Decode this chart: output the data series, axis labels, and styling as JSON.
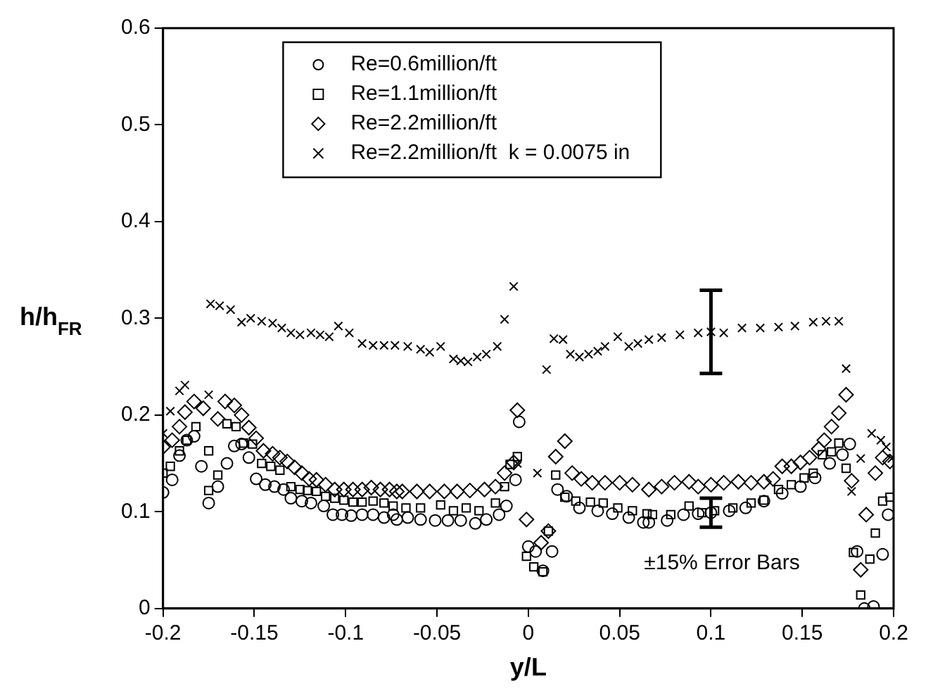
{
  "chart_data": {
    "type": "scatter",
    "xlabel": "y/L",
    "ylabel": "h/h$_{FR}$",
    "xlim": [
      -0.2,
      0.2
    ],
    "xticks": [
      -0.2,
      -0.15,
      -0.1,
      -0.05,
      0,
      0.05,
      0.1,
      0.15,
      0.2
    ],
    "ylim": [
      0,
      0.6
    ],
    "yticks": [
      0,
      0.1,
      0.2,
      0.3,
      0.4,
      0.5,
      0.6
    ],
    "grid": false,
    "legend": "top",
    "annotations": [
      "±15% Error Bars"
    ],
    "series": [
      {
        "name": "Re=0.6million/ft",
        "color": "#000000",
        "marker": "circle",
        "x": [
          0.1,
          -0.2,
          -0.195,
          -0.191,
          -0.187,
          -0.183,
          -0.179,
          -0.175,
          -0.17,
          -0.165,
          -0.161,
          -0.157,
          -0.153,
          -0.149,
          -0.144,
          -0.139,
          -0.134,
          -0.13,
          -0.124,
          -0.119,
          -0.112,
          -0.107,
          -0.102,
          -0.097,
          -0.091,
          -0.085,
          -0.079,
          -0.072,
          -0.066,
          -0.059,
          -0.051,
          -0.044,
          -0.037,
          -0.029,
          -0.023,
          -0.016,
          -0.012,
          -0.007,
          -0.005,
          0.0,
          0.004,
          0.008,
          0.013,
          0.016,
          0.021,
          0.028,
          0.038,
          0.046,
          0.055,
          0.063,
          0.066,
          0.076,
          0.085,
          0.093,
          0.11,
          0.119,
          0.129,
          0.139,
          0.149,
          0.157,
          0.165,
          0.172,
          0.176,
          0.18,
          0.184,
          0.189,
          0.194,
          0.197,
          -0.074
        ],
        "values": [
          0.099,
          0.12,
          0.133,
          0.158,
          0.174,
          0.178,
          0.147,
          0.109,
          0.126,
          0.15,
          0.168,
          0.17,
          0.156,
          0.134,
          0.128,
          0.126,
          0.123,
          0.114,
          0.111,
          0.109,
          0.106,
          0.097,
          0.097,
          0.096,
          0.097,
          0.097,
          0.094,
          0.092,
          0.094,
          0.092,
          0.091,
          0.091,
          0.091,
          0.088,
          0.092,
          0.097,
          0.106,
          0.133,
          0.193,
          0.064,
          0.059,
          0.039,
          0.059,
          0.123,
          0.116,
          0.104,
          0.101,
          0.098,
          0.094,
          0.089,
          0.089,
          0.091,
          0.097,
          0.098,
          0.101,
          0.104,
          0.111,
          0.119,
          0.126,
          0.135,
          0.15,
          0.159,
          0.17,
          0.059,
          0.0,
          0.002,
          0.056,
          0.097,
          0.097
        ],
        "errors": [
          0.015,
          null,
          null,
          null,
          null,
          null,
          null,
          null,
          null,
          null,
          null,
          null,
          null,
          null,
          null,
          null,
          null,
          null,
          null,
          null,
          null,
          null,
          null,
          null,
          null,
          null,
          null,
          null,
          null,
          null,
          null,
          null,
          null,
          null,
          null,
          null,
          null,
          null,
          null,
          null,
          null,
          null,
          null,
          null,
          null,
          null,
          null,
          null,
          null,
          null,
          null,
          null,
          null,
          null,
          null,
          null,
          null,
          null,
          null,
          null,
          null,
          null,
          null,
          null,
          null,
          null,
          null,
          null,
          null
        ]
      },
      {
        "name": "Re=1.1million/ft",
        "color": "#000000",
        "marker": "square",
        "x": [
          -0.2,
          -0.196,
          -0.191,
          -0.187,
          -0.182,
          -0.175,
          -0.175,
          -0.17,
          -0.165,
          -0.16,
          -0.156,
          -0.151,
          -0.146,
          -0.141,
          -0.136,
          -0.13,
          -0.125,
          -0.121,
          -0.116,
          -0.111,
          -0.106,
          -0.101,
          -0.096,
          -0.091,
          -0.085,
          -0.079,
          -0.074,
          -0.067,
          -0.059,
          -0.048,
          -0.041,
          -0.034,
          -0.027,
          -0.018,
          -0.013,
          -0.01,
          -0.006,
          -0.001,
          0.003,
          0.008,
          0.011,
          0.015,
          0.02,
          0.026,
          0.034,
          0.041,
          0.049,
          0.057,
          0.065,
          0.068,
          0.078,
          0.088,
          0.095,
          0.102,
          0.112,
          0.122,
          0.129,
          0.137,
          0.144,
          0.151,
          0.156,
          0.161,
          0.166,
          0.17,
          0.174,
          0.178,
          0.182,
          0.187,
          0.19,
          0.194,
          0.198
        ],
        "values": [
          0.14,
          0.147,
          0.163,
          0.174,
          0.188,
          0.163,
          0.122,
          0.138,
          0.191,
          0.188,
          0.171,
          0.17,
          0.15,
          0.147,
          0.143,
          0.126,
          0.123,
          0.122,
          0.121,
          0.116,
          0.114,
          0.112,
          0.11,
          0.11,
          0.111,
          0.109,
          0.106,
          0.104,
          0.104,
          0.107,
          0.101,
          0.104,
          0.101,
          0.109,
          0.126,
          0.149,
          0.157,
          0.054,
          0.043,
          0.038,
          0.08,
          0.138,
          0.115,
          0.111,
          0.11,
          0.109,
          0.104,
          0.101,
          0.098,
          0.097,
          0.097,
          0.106,
          0.099,
          0.101,
          0.104,
          0.109,
          0.112,
          0.123,
          0.128,
          0.135,
          0.14,
          0.159,
          0.162,
          0.171,
          0.145,
          0.058,
          0.014,
          0.051,
          0.078,
          0.111,
          0.115
        ]
      },
      {
        "name": "Re=2.2million/ft",
        "color": "#000000",
        "marker": "diamond",
        "x": [
          -0.2,
          -0.195,
          -0.191,
          -0.188,
          -0.183,
          -0.178,
          -0.17,
          -0.166,
          -0.161,
          -0.157,
          -0.153,
          -0.149,
          -0.145,
          -0.14,
          -0.136,
          -0.132,
          -0.128,
          -0.124,
          -0.12,
          -0.116,
          -0.111,
          -0.106,
          -0.101,
          -0.096,
          -0.091,
          -0.086,
          -0.081,
          -0.076,
          -0.072,
          -0.069,
          -0.061,
          -0.054,
          -0.046,
          -0.039,
          -0.032,
          -0.024,
          -0.018,
          -0.013,
          -0.008,
          -0.006,
          -0.001,
          0.007,
          0.011,
          0.015,
          0.02,
          0.024,
          0.029,
          0.035,
          0.042,
          0.05,
          0.057,
          0.066,
          0.073,
          0.08,
          0.088,
          0.093,
          0.1,
          0.107,
          0.115,
          0.122,
          0.129,
          0.134,
          0.139,
          0.144,
          0.149,
          0.154,
          0.159,
          0.162,
          0.166,
          0.17,
          0.174,
          0.177,
          0.182,
          0.185,
          0.19,
          0.194,
          0.198
        ],
        "values": [
          0.167,
          0.174,
          0.188,
          0.203,
          0.214,
          0.207,
          0.196,
          0.214,
          0.21,
          0.2,
          0.187,
          0.176,
          0.163,
          0.16,
          0.156,
          0.152,
          0.146,
          0.14,
          0.134,
          0.133,
          0.128,
          0.123,
          0.123,
          0.123,
          0.123,
          0.125,
          0.123,
          0.123,
          0.121,
          0.121,
          0.121,
          0.121,
          0.121,
          0.121,
          0.122,
          0.123,
          0.126,
          0.14,
          0.151,
          0.205,
          0.092,
          0.068,
          0.08,
          0.157,
          0.173,
          0.14,
          0.134,
          0.13,
          0.13,
          0.13,
          0.128,
          0.123,
          0.126,
          0.13,
          0.131,
          0.126,
          0.128,
          0.13,
          0.131,
          0.13,
          0.131,
          0.134,
          0.147,
          0.147,
          0.151,
          0.156,
          0.165,
          0.174,
          0.188,
          0.202,
          0.221,
          0.132,
          0.04,
          0.097,
          0.14,
          0.156,
          0.152
        ]
      },
      {
        "name": "Re=2.2million/ft  k = 0.0075 in",
        "color": "#000000",
        "marker": "cross",
        "x": [
          0.1,
          -0.2,
          -0.196,
          -0.191,
          -0.188,
          -0.175,
          -0.174,
          -0.169,
          -0.163,
          -0.157,
          -0.152,
          -0.146,
          -0.14,
          -0.135,
          -0.13,
          -0.125,
          -0.119,
          -0.114,
          -0.109,
          -0.104,
          -0.098,
          -0.091,
          -0.085,
          -0.079,
          -0.073,
          -0.066,
          -0.059,
          -0.054,
          -0.048,
          -0.041,
          -0.037,
          -0.033,
          -0.028,
          -0.023,
          -0.017,
          -0.013,
          -0.008,
          -0.006,
          0.005,
          0.01,
          0.014,
          0.019,
          0.023,
          0.028,
          0.033,
          0.038,
          0.042,
          0.049,
          0.055,
          0.06,
          0.066,
          0.073,
          0.083,
          0.093,
          0.107,
          0.117,
          0.127,
          0.137,
          0.146,
          0.156,
          0.163,
          0.17,
          0.174,
          0.177,
          0.182,
          0.188,
          0.193,
          0.196,
          0.199
        ],
        "values": [
          0.286,
          0.181,
          0.204,
          0.225,
          0.231,
          0.221,
          0.315,
          0.313,
          0.309,
          0.296,
          0.3,
          0.297,
          0.295,
          0.29,
          0.285,
          0.283,
          0.285,
          0.283,
          0.281,
          0.292,
          0.285,
          0.274,
          0.272,
          0.272,
          0.272,
          0.271,
          0.268,
          0.265,
          0.271,
          0.258,
          0.256,
          0.255,
          0.26,
          0.263,
          0.271,
          0.299,
          0.333,
          0.15,
          0.14,
          0.247,
          0.279,
          0.278,
          0.263,
          0.26,
          0.263,
          0.266,
          0.271,
          0.281,
          0.271,
          0.274,
          0.278,
          0.28,
          0.283,
          0.285,
          0.285,
          0.29,
          0.29,
          0.291,
          0.292,
          0.296,
          0.297,
          0.297,
          0.248,
          0.121,
          0.155,
          0.181,
          0.174,
          0.167,
          0.155
        ],
        "errors": [
          0.043,
          null,
          null,
          null,
          null,
          null,
          null,
          null,
          null,
          null,
          null,
          null,
          null,
          null,
          null,
          null,
          null,
          null,
          null,
          null,
          null,
          null,
          null,
          null,
          null,
          null,
          null,
          null,
          null,
          null,
          null,
          null,
          null,
          null,
          null,
          null,
          null,
          null,
          null,
          null,
          null,
          null,
          null,
          null,
          null,
          null,
          null,
          null,
          null,
          null,
          null,
          null,
          null,
          null,
          null,
          null,
          null,
          null,
          null,
          null,
          null,
          null,
          null,
          null,
          null,
          null,
          null,
          null,
          null
        ]
      }
    ]
  }
}
